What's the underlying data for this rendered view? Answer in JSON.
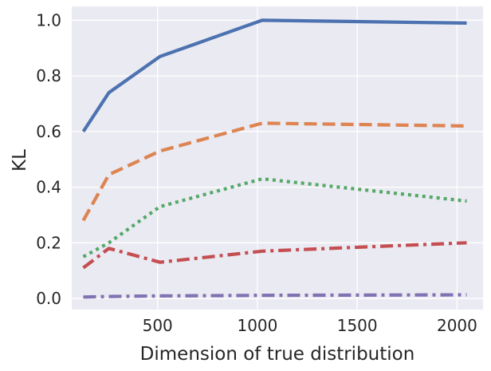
{
  "chart_data": {
    "type": "line",
    "xlabel": "Dimension of true distribution",
    "ylabel": "KL",
    "xlim": [
      70,
      2130
    ],
    "ylim": [
      -0.04,
      1.05
    ],
    "x_ticks": [
      500,
      1000,
      1500,
      2000
    ],
    "y_ticks": [
      0.0,
      0.2,
      0.4,
      0.6,
      0.8,
      1.0
    ],
    "x_tick_labels": [
      "500",
      "1000",
      "1500",
      "2000"
    ],
    "y_tick_labels": [
      "0.0",
      "0.2",
      "0.4",
      "0.6",
      "0.8",
      "1.0"
    ],
    "grid": true,
    "legend": "none",
    "background": "#eaeaf2",
    "x": [
      128,
      256,
      512,
      1024,
      2048
    ],
    "series": [
      {
        "values": [
          0.6,
          0.74,
          0.87,
          1.0,
          0.99
        ],
        "color": "#4c72b0",
        "style": "solid"
      },
      {
        "values": [
          0.28,
          0.445,
          0.53,
          0.63,
          0.62
        ],
        "color": "#dd8452",
        "style": "dashed"
      },
      {
        "values": [
          0.15,
          0.2,
          0.33,
          0.43,
          0.35
        ],
        "color": "#55a868",
        "style": "dotted"
      },
      {
        "values": [
          0.11,
          0.18,
          0.13,
          0.17,
          0.2
        ],
        "color": "#c44e52",
        "style": "dashdot"
      },
      {
        "values": [
          0.005,
          0.007,
          0.009,
          0.011,
          0.013
        ],
        "color": "#8172b3",
        "style": "dashdot"
      }
    ]
  }
}
